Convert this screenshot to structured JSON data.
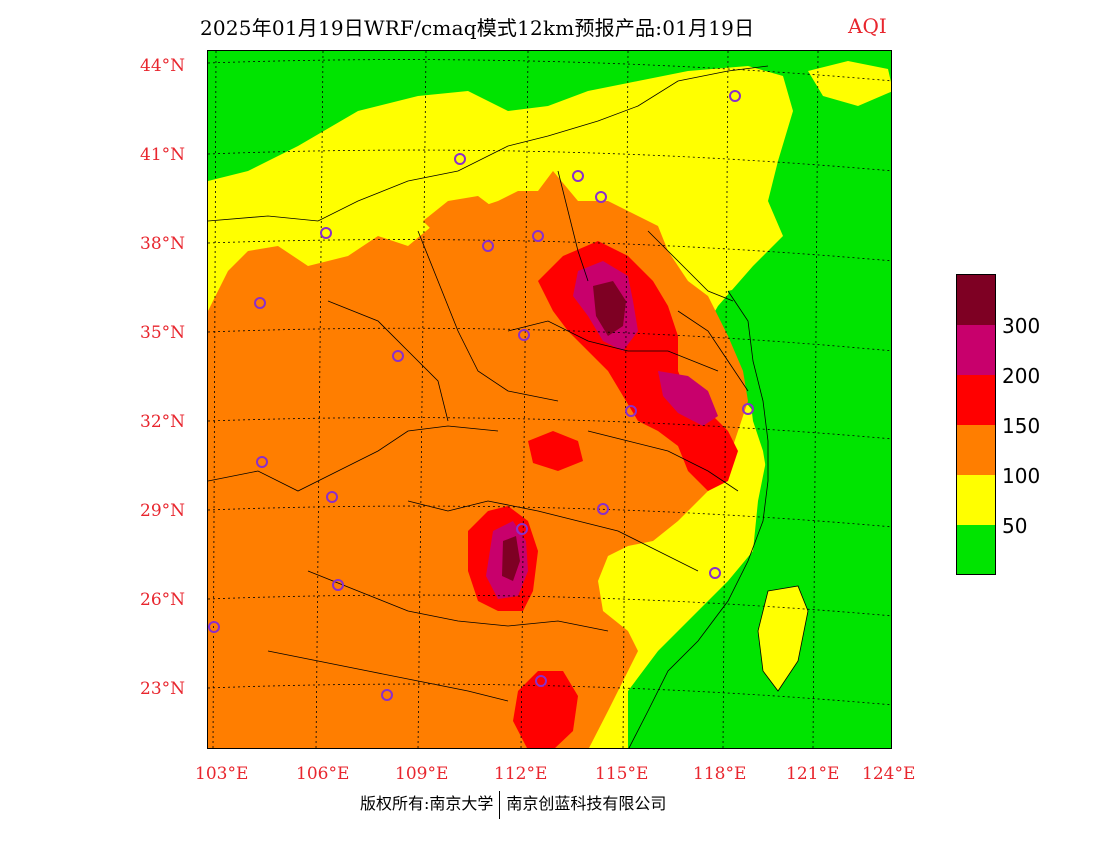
{
  "title": {
    "main": "2025年01月19日WRF/cmaq模式12km预报产品:01月19日",
    "variable": "AQI"
  },
  "colors": {
    "green": "#00e400",
    "yellow": "#ffff00",
    "orange": "#ff7e00",
    "red": "#ff0000",
    "purple": "#c8006c",
    "maroon": "#7e0023",
    "axis_text": "#e8262e",
    "station_marker": "#8b2fc9"
  },
  "latitude_labels": [
    "44°N",
    "41°N",
    "38°N",
    "35°N",
    "32°N",
    "29°N",
    "26°N",
    "23°N"
  ],
  "longitude_labels": [
    "103°E",
    "106°E",
    "109°E",
    "112°E",
    "115°E",
    "118°E",
    "121°E",
    "124°E"
  ],
  "legend": {
    "levels": [
      "300",
      "200",
      "150",
      "100",
      "50"
    ],
    "swatch_colors": [
      "#7e0023",
      "#c8006c",
      "#ff0000",
      "#ff7e00",
      "#ffff00",
      "#00e400"
    ]
  },
  "footer": {
    "left": "版权所有:南京大学",
    "right": "南京创蓝科技有限公司"
  }
}
